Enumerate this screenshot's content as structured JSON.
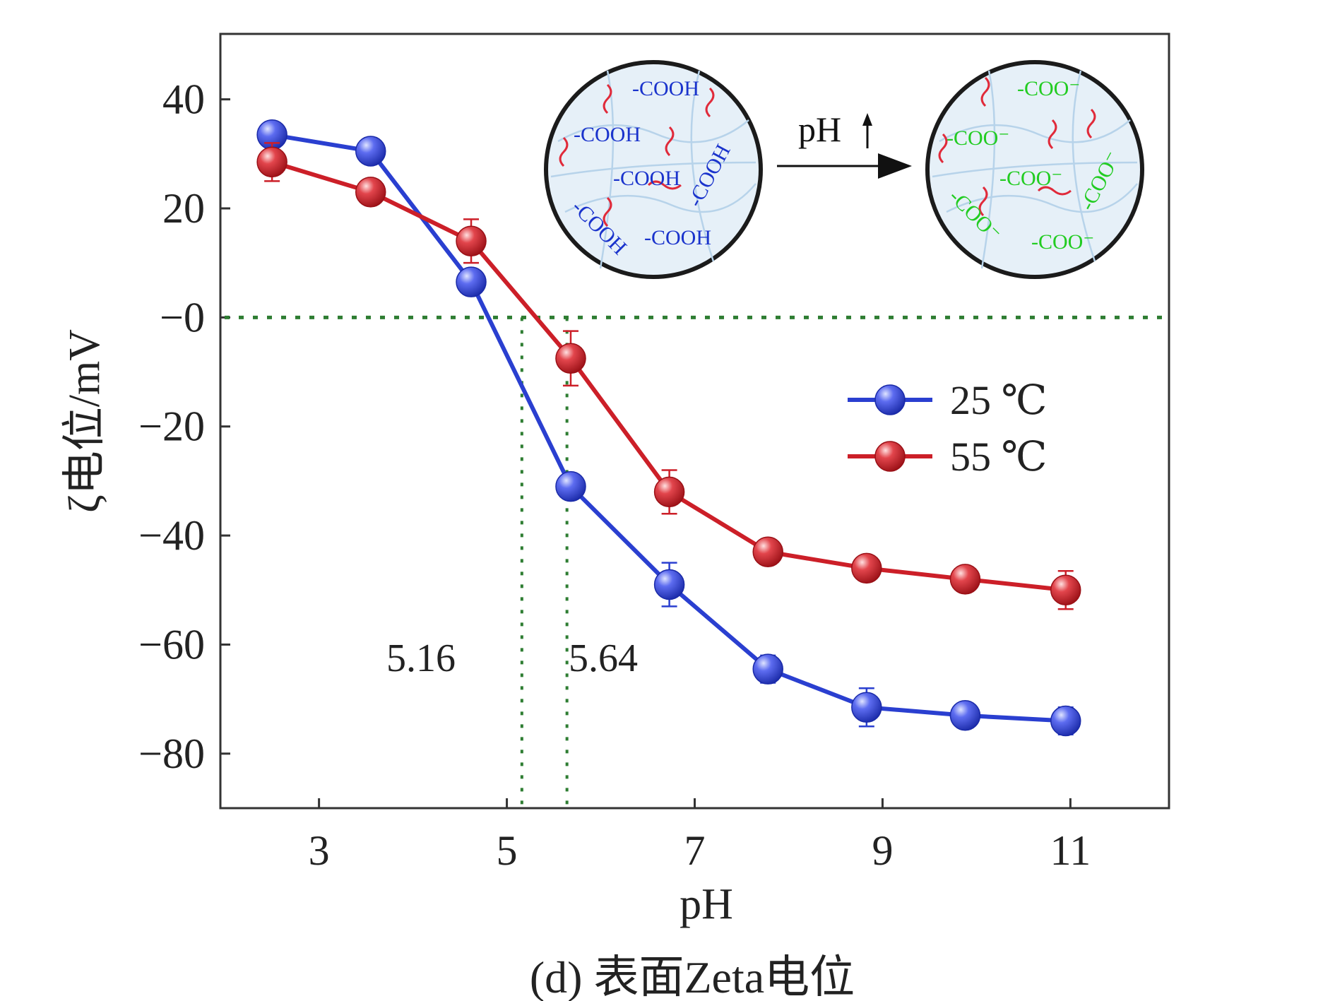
{
  "chart_data": {
    "type": "line",
    "caption": "(d) 表面Zeta电位",
    "xlabel": "pH",
    "ylabel": "ζ电位/mV",
    "x_ticks": [
      3,
      5,
      7,
      9,
      11
    ],
    "y_ticks": [
      40,
      20,
      0,
      -20,
      -40,
      -60,
      -80
    ],
    "y_tick_labels": [
      "40",
      "20",
      "−0",
      "−20",
      "−40",
      "−60",
      "−80"
    ],
    "xlim": [
      1.95,
      12.05
    ],
    "ylim": [
      -90,
      52
    ],
    "x": [
      2.5,
      3.55,
      4.62,
      5.68,
      6.73,
      7.78,
      8.83,
      9.88,
      10.95
    ],
    "series": [
      {
        "name": "25 ℃",
        "color": "#2a3fd0",
        "y": [
          33.5,
          30.5,
          6.5,
          -31,
          -49,
          -64.5,
          -71.5,
          -73,
          -74
        ],
        "err": [
          1.5,
          1.5,
          1.2,
          1.5,
          4,
          2.5,
          3.5,
          1.5,
          2.5
        ]
      },
      {
        "name": "55 ℃",
        "color": "#cc1f28",
        "y": [
          28.5,
          23,
          14,
          -7.5,
          -32,
          -43,
          -46,
          -48,
          -50
        ],
        "err": [
          3.5,
          1.5,
          4,
          5,
          4,
          1.5,
          1.5,
          1.5,
          3.5
        ]
      }
    ],
    "reference_lines": {
      "horizontal_y": 0,
      "vertical_x": [
        5.16,
        5.64
      ],
      "color": "#2e7d32",
      "style": "dotted"
    },
    "annotations": [
      "5.16",
      "5.64"
    ],
    "legend": {
      "placement": "right-middle",
      "entries": [
        "25 ℃",
        "55 ℃"
      ]
    },
    "inset": {
      "arrow_label": "pH",
      "left_circle_groups": [
        "-COOH",
        "-COOH",
        "-COOH",
        "-COOH",
        "-COOH",
        "-COOH"
      ],
      "right_circle_groups": [
        "-COO⁻",
        "-COO⁻",
        "-COO⁻",
        "-COO⁻",
        "-COO⁻",
        "-COO⁻"
      ],
      "left_group_color": "#1a33cc",
      "right_group_color": "#22cc22",
      "chain_color": "#e02a3a",
      "fill_color": "#e6f0f8"
    }
  }
}
